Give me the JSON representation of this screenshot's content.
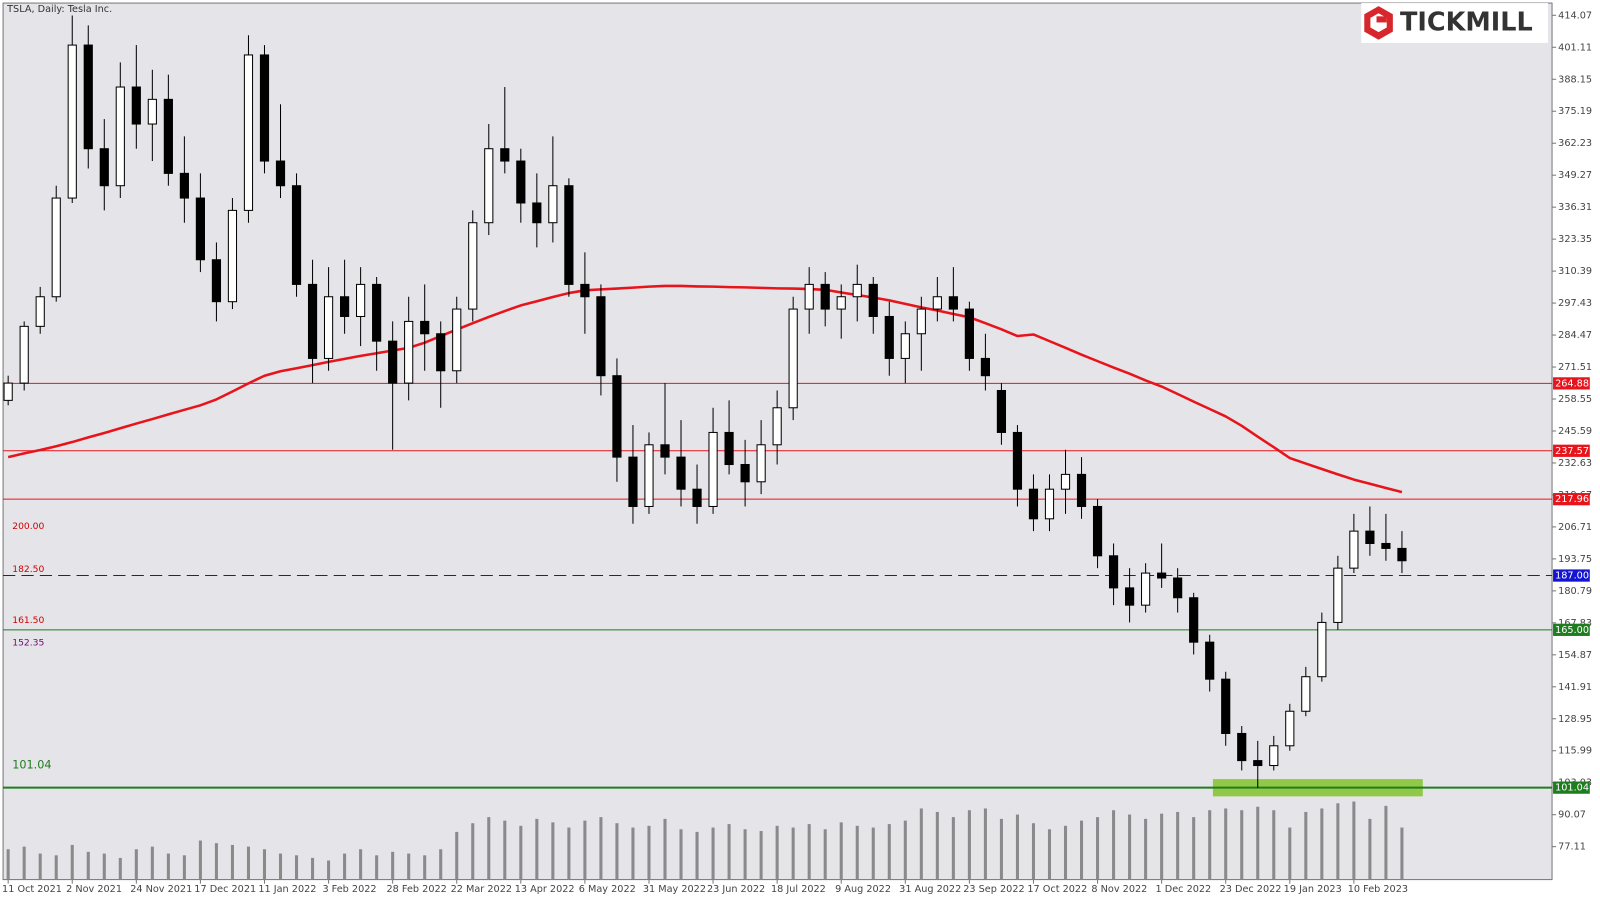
{
  "chart_data": {
    "type": "candlestick",
    "title": "TSLA, Daily:  Tesla Inc.",
    "brand": "TICKMILL",
    "categories": [
      "11 Oct 2021",
      null,
      null,
      null,
      "2 Nov 2021",
      null,
      null,
      null,
      "24 Nov 2021",
      null,
      null,
      null,
      "17 Dec 2021",
      null,
      null,
      null,
      "11 Jan 2022",
      null,
      null,
      null,
      "3 Feb 2022",
      null,
      null,
      null,
      "28 Feb 2022",
      null,
      null,
      null,
      "22 Mar 2022",
      null,
      null,
      null,
      "13 Apr 2022",
      null,
      null,
      null,
      "6 May 2022",
      null,
      null,
      null,
      "31 May 2022",
      null,
      null,
      null,
      "23 Jun 2022",
      null,
      null,
      null,
      "18 Jul 2022",
      null,
      null,
      null,
      "9 Aug 2022",
      null,
      null,
      null,
      "31 Aug 2022",
      null,
      null,
      null,
      "23 Sep 2022",
      null,
      null,
      null,
      "17 Oct 2022",
      null,
      null,
      null,
      "8 Nov 2022",
      null,
      null,
      null,
      "1 Dec 2022",
      null,
      null,
      null,
      "23 Dec 2022",
      null,
      null,
      null,
      "19 Jan 2023",
      null,
      null,
      null,
      "10 Feb 2023",
      null,
      null,
      null
    ],
    "candles": [
      [
        258,
        268,
        256,
        265
      ],
      [
        265,
        290,
        262,
        288
      ],
      [
        288,
        304,
        285,
        300
      ],
      [
        300,
        345,
        298,
        340
      ],
      [
        340,
        414,
        338,
        402
      ],
      [
        402,
        410,
        352,
        360
      ],
      [
        360,
        372,
        335,
        345
      ],
      [
        345,
        395,
        340,
        385
      ],
      [
        385,
        402,
        360,
        370
      ],
      [
        370,
        392,
        355,
        380
      ],
      [
        380,
        390,
        345,
        350
      ],
      [
        350,
        365,
        330,
        340
      ],
      [
        340,
        350,
        310,
        315
      ],
      [
        315,
        322,
        290,
        298
      ],
      [
        298,
        340,
        295,
        335
      ],
      [
        335,
        406,
        330,
        398
      ],
      [
        398,
        402,
        350,
        355
      ],
      [
        355,
        378,
        340,
        345
      ],
      [
        345,
        350,
        300,
        305
      ],
      [
        305,
        315,
        265,
        275
      ],
      [
        275,
        312,
        270,
        300
      ],
      [
        300,
        315,
        285,
        292
      ],
      [
        292,
        312,
        280,
        305
      ],
      [
        305,
        308,
        270,
        282
      ],
      [
        282,
        290,
        238,
        265
      ],
      [
        265,
        300,
        258,
        290
      ],
      [
        290,
        305,
        270,
        285
      ],
      [
        285,
        290,
        255,
        270
      ],
      [
        270,
        300,
        265,
        295
      ],
      [
        295,
        335,
        290,
        330
      ],
      [
        330,
        370,
        325,
        360
      ],
      [
        360,
        385,
        350,
        355
      ],
      [
        355,
        360,
        330,
        338
      ],
      [
        338,
        350,
        320,
        330
      ],
      [
        330,
        365,
        322,
        345
      ],
      [
        345,
        348,
        300,
        305
      ],
      [
        305,
        318,
        285,
        300
      ],
      [
        300,
        305,
        260,
        268
      ],
      [
        268,
        275,
        225,
        235
      ],
      [
        235,
        248,
        208,
        215
      ],
      [
        215,
        245,
        212,
        240
      ],
      [
        240,
        265,
        228,
        235
      ],
      [
        235,
        250,
        215,
        222
      ],
      [
        222,
        232,
        208,
        215
      ],
      [
        215,
        255,
        212,
        245
      ],
      [
        245,
        258,
        228,
        232
      ],
      [
        232,
        242,
        215,
        225
      ],
      [
        225,
        250,
        220,
        240
      ],
      [
        240,
        262,
        232,
        255
      ],
      [
        255,
        300,
        250,
        295
      ],
      [
        295,
        312,
        285,
        305
      ],
      [
        305,
        310,
        288,
        295
      ],
      [
        295,
        305,
        283,
        300
      ],
      [
        300,
        313,
        290,
        305
      ],
      [
        305,
        308,
        285,
        292
      ],
      [
        292,
        298,
        268,
        275
      ],
      [
        275,
        290,
        265,
        285
      ],
      [
        285,
        300,
        270,
        295
      ],
      [
        295,
        308,
        290,
        300
      ],
      [
        300,
        312,
        290,
        295
      ],
      [
        295,
        298,
        270,
        275
      ],
      [
        275,
        285,
        262,
        268
      ],
      [
        262,
        265,
        240,
        245
      ],
      [
        245,
        248,
        215,
        222
      ],
      [
        222,
        228,
        205,
        210
      ],
      [
        210,
        228,
        205,
        222
      ],
      [
        222,
        238,
        212,
        228
      ],
      [
        228,
        235,
        210,
        215
      ],
      [
        215,
        218,
        190,
        195
      ],
      [
        195,
        200,
        175,
        182
      ],
      [
        182,
        190,
        168,
        175
      ],
      [
        175,
        192,
        172,
        188
      ],
      [
        188,
        200,
        182,
        186
      ],
      [
        186,
        190,
        172,
        178
      ],
      [
        178,
        180,
        155,
        160
      ],
      [
        160,
        163,
        140,
        145
      ],
      [
        145,
        148,
        118,
        123
      ],
      [
        123,
        126,
        108,
        112
      ],
      [
        112,
        120,
        101,
        110
      ],
      [
        110,
        122,
        108,
        118
      ],
      [
        118,
        135,
        116,
        132
      ],
      [
        132,
        150,
        130,
        146
      ],
      [
        146,
        172,
        144,
        168
      ],
      [
        168,
        195,
        165,
        190
      ],
      [
        190,
        212,
        188,
        205
      ],
      [
        205,
        215,
        195,
        200
      ],
      [
        200,
        212,
        193,
        198
      ],
      [
        198,
        205,
        188,
        193
      ]
    ],
    "volume": [
      35,
      38,
      30,
      28,
      40,
      32,
      30,
      25,
      35,
      38,
      30,
      28,
      45,
      42,
      40,
      38,
      35,
      30,
      28,
      25,
      22,
      30,
      35,
      28,
      32,
      30,
      28,
      35,
      55,
      65,
      72,
      68,
      62,
      70,
      66,
      60,
      68,
      72,
      65,
      60,
      62,
      70,
      58,
      55,
      60,
      64,
      58,
      56,
      62,
      60,
      64,
      58,
      66,
      62,
      60,
      64,
      68,
      82,
      78,
      72,
      80,
      82,
      70,
      75,
      65,
      58,
      62,
      68,
      72,
      80,
      75,
      70,
      76,
      78,
      72,
      80,
      82,
      80,
      84,
      80,
      60,
      78,
      82,
      88,
      90,
      70,
      85,
      60
    ],
    "vlim": [
      0,
      100
    ],
    "ma": {
      "color": "#e8141c",
      "values": [
        235,
        236.5,
        237.9,
        239.4,
        241.1,
        243,
        244.8,
        246.7,
        248.6,
        250.4,
        252.3,
        254.2,
        256,
        258.4,
        261.6,
        264.9,
        268,
        269.8,
        271,
        272.3,
        273.6,
        274.8,
        276,
        277.1,
        278.2,
        279.3,
        281.4,
        284.1,
        286.7,
        289.3,
        291.8,
        294.2,
        296.5,
        298.2,
        299.9,
        301.5,
        302.6,
        303,
        303.3,
        303.7,
        304.1,
        304.4,
        304.4,
        304.2,
        304.1,
        303.9,
        303.8,
        303.6,
        303.4,
        303.3,
        303.1,
        302.8,
        301.7,
        300.7,
        299.7,
        298.5,
        297.1,
        295.7,
        294.4,
        293,
        291.7,
        289.3,
        286.8,
        284.1,
        284.7,
        282,
        279.3,
        276.5,
        273.9,
        271.3,
        268.8,
        266.1,
        263.6,
        260.6,
        257.5,
        254.5,
        251.5,
        247.7,
        243.3,
        239,
        234.6,
        232.4,
        230.2,
        228,
        225.9,
        224.2,
        222.5,
        220.8
      ]
    },
    "ylim": [
      63.77,
      419.03
    ],
    "yticks": [
      414.07,
      401.11,
      388.15,
      375.19,
      362.23,
      349.27,
      336.31,
      323.35,
      310.39,
      297.43,
      284.47,
      271.51,
      258.55,
      245.59,
      232.63,
      219.67,
      206.71,
      193.75,
      180.79,
      167.83,
      154.87,
      141.91,
      128.95,
      115.99,
      103.03,
      90.07,
      77.11
    ],
    "levels": [
      {
        "value": 264.88,
        "color": "#e8141c",
        "style": "solid"
      },
      {
        "value": 237.57,
        "color": "#e8141c",
        "style": "solid"
      },
      {
        "value": 217.96,
        "color": "#e8141c",
        "style": "solid"
      },
      {
        "value": 187,
        "label": "187.00",
        "color": "#1414d2",
        "style": "dashed"
      },
      {
        "value": 165,
        "label": "165.00",
        "color": "#1e7d1e",
        "style": "solid"
      },
      {
        "value": 101.04,
        "color": "#1e7d1e",
        "style": "thick"
      }
    ],
    "zone": {
      "low": 97.5,
      "high": 104.5,
      "color": "#8cc63f"
    },
    "annotations": [
      {
        "text": "200.00",
        "color": "#d10000"
      },
      {
        "text": "182.50",
        "color": "#d10000"
      },
      {
        "text": "161.50",
        "color": "#d10000"
      },
      {
        "text": "152.35",
        "color": "#6e0a6e"
      },
      {
        "text": "101.04",
        "color": "#1e7d1e"
      }
    ]
  }
}
